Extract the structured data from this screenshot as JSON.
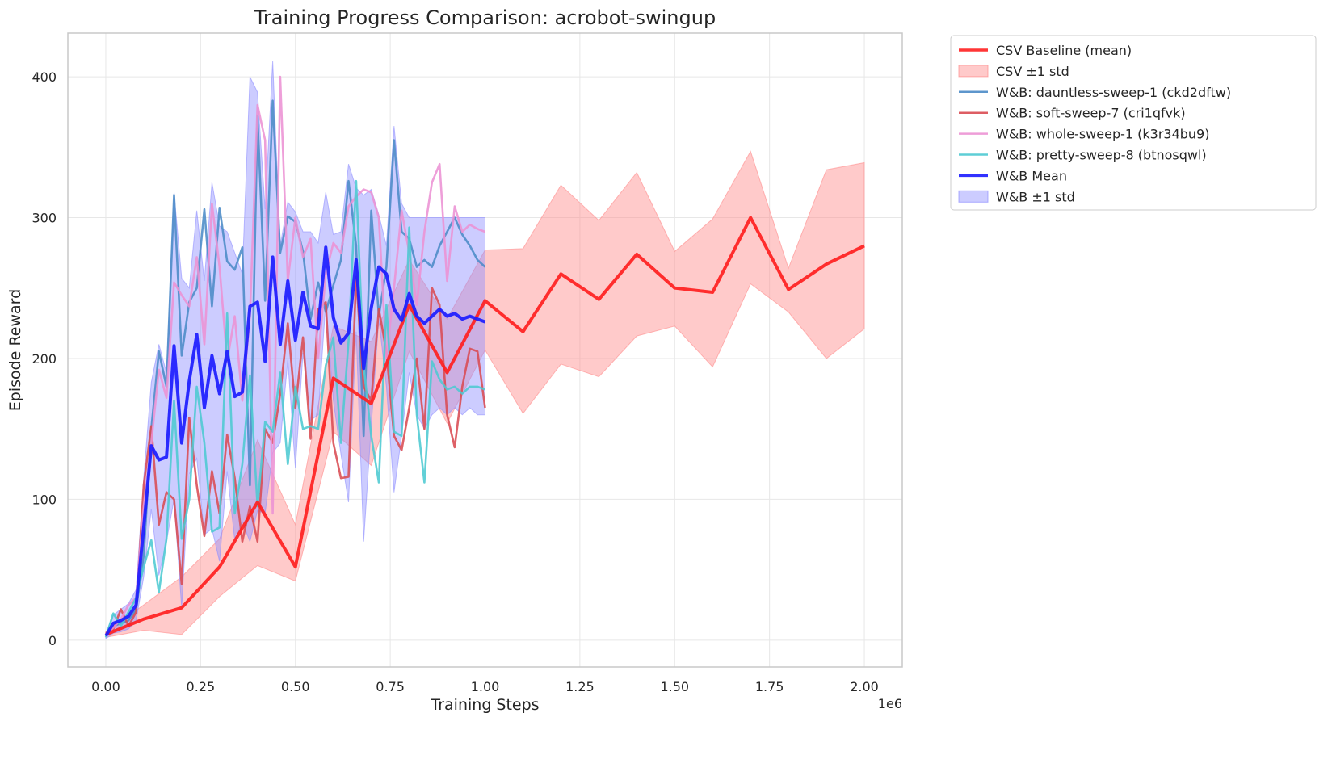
{
  "chart_data": {
    "type": "line",
    "title": "Training Progress Comparison: acrobot-swingup",
    "xlabel": "Training Steps",
    "ylabel": "Episode Reward",
    "x_offset_label": "1e6",
    "xlim": [
      -0.1,
      2.1
    ],
    "ylim": [
      -19,
      431
    ],
    "xticks": [
      0.0,
      0.25,
      0.5,
      0.75,
      1.0,
      1.25,
      1.5,
      1.75,
      2.0
    ],
    "xtick_labels": [
      "0.00",
      "0.25",
      "0.50",
      "0.75",
      "1.00",
      "1.25",
      "1.50",
      "1.75",
      "2.00"
    ],
    "yticks": [
      0,
      100,
      200,
      300,
      400
    ],
    "ytick_labels": [
      "0",
      "100",
      "200",
      "300",
      "400"
    ],
    "grid": true,
    "legend_position": "outside-top-right",
    "colors": {
      "csv": "#ff2020",
      "csv_band": "#ff8a8a",
      "wb_mean": "#1c1cff",
      "wb_band": "#8f8fff",
      "dauntless": "#4b8bc7",
      "soft": "#d94b52",
      "whole": "#ec92d4",
      "pretty": "#4cc9d1",
      "grid": "#e7e7e7",
      "frame": "#c8c8c8"
    },
    "legend": [
      {
        "label": "CSV Baseline (mean)",
        "kind": "line",
        "color": "#ff2020",
        "width": 3.5
      },
      {
        "label": "CSV ±1 std",
        "kind": "band",
        "color": "#ff8a8a"
      },
      {
        "label": "W&B: dauntless-sweep-1 (ckd2dftw)",
        "kind": "line",
        "color": "#4b8bc7",
        "width": 2.5
      },
      {
        "label": "W&B: soft-sweep-7 (cri1qfvk)",
        "kind": "line",
        "color": "#d94b52",
        "width": 2.5
      },
      {
        "label": "W&B: whole-sweep-1 (k3r34bu9)",
        "kind": "line",
        "color": "#ec92d4",
        "width": 2.5
      },
      {
        "label": "W&B: pretty-sweep-8 (btnosqwl)",
        "kind": "line",
        "color": "#4cc9d1",
        "width": 2.5
      },
      {
        "label": "W&B Mean",
        "kind": "line",
        "color": "#1c1cff",
        "width": 3.5
      },
      {
        "label": "W&B ±1 std",
        "kind": "band",
        "color": "#8f8fff"
      }
    ],
    "csv": {
      "x": [
        0.0,
        0.1,
        0.2,
        0.3,
        0.4,
        0.5,
        0.6,
        0.7,
        0.8,
        0.9,
        1.0,
        1.1,
        1.2,
        1.3,
        1.4,
        1.5,
        1.6,
        1.7,
        1.8,
        1.9,
        2.0
      ],
      "mean": [
        4,
        15,
        23,
        52,
        98,
        52,
        186,
        168,
        238,
        190,
        241,
        219,
        260,
        242,
        274,
        250,
        247,
        300,
        249,
        267,
        280
      ],
      "upper": [
        6,
        25,
        45,
        72,
        142,
        82,
        223,
        212,
        270,
        228,
        277,
        278,
        323,
        298,
        332,
        276,
        299,
        347,
        264,
        334,
        339
      ],
      "lower": [
        2,
        7,
        4,
        31,
        53,
        42,
        148,
        124,
        205,
        154,
        206,
        161,
        196,
        187,
        216,
        223,
        194,
        253,
        233,
        200,
        221
      ]
    },
    "wb_x": [
      0.0,
      0.02,
      0.04,
      0.06,
      0.08,
      0.1,
      0.12,
      0.14,
      0.16,
      0.18,
      0.2,
      0.22,
      0.24,
      0.26,
      0.28,
      0.3,
      0.32,
      0.34,
      0.36,
      0.38,
      0.4,
      0.42,
      0.44,
      0.46,
      0.48,
      0.5,
      0.52,
      0.54,
      0.56,
      0.58,
      0.6,
      0.62,
      0.64,
      0.66,
      0.68,
      0.7,
      0.72,
      0.74,
      0.76,
      0.78,
      0.8,
      0.82,
      0.84,
      0.86,
      0.88,
      0.9,
      0.92,
      0.94,
      0.96,
      0.98,
      1.0
    ],
    "series": [
      {
        "name": "W&B: dauntless-sweep-1 (ckd2dftw)",
        "color": "#4b8bc7",
        "values": [
          3,
          10,
          12,
          14,
          22,
          60,
          150,
          205,
          180,
          316,
          202,
          240,
          250,
          306,
          237,
          307,
          269,
          263,
          279,
          110,
          372,
          241,
          383,
          275,
          301,
          297,
          276,
          228,
          254,
          233,
          252,
          270,
          326,
          280,
          145,
          305,
          230,
          265,
          355,
          290,
          285,
          265,
          270,
          265,
          280,
          290,
          300,
          288,
          280,
          270,
          265
        ]
      },
      {
        "name": "W&B: soft-sweep-7 (cri1qfvk)",
        "color": "#d94b52",
        "values": [
          5,
          8,
          22,
          10,
          20,
          110,
          152,
          82,
          105,
          100,
          40,
          158,
          110,
          74,
          120,
          90,
          146,
          115,
          70,
          95,
          70,
          150,
          140,
          175,
          225,
          165,
          215,
          143,
          235,
          240,
          140,
          115,
          116,
          258,
          180,
          170,
          235,
          205,
          145,
          135,
          165,
          200,
          150,
          250,
          238,
          160,
          137,
          180,
          207,
          205,
          165
        ]
      },
      {
        "name": "W&B: whole-sweep-1 (k3r34bu9)",
        "color": "#ec92d4",
        "values": [
          4,
          9,
          15,
          25,
          30,
          95,
          140,
          192,
          172,
          254,
          245,
          237,
          272,
          210,
          310,
          265,
          198,
          230,
          170,
          230,
          380,
          355,
          90,
          400,
          255,
          300,
          272,
          285,
          200,
          260,
          282,
          275,
          308,
          315,
          320,
          318,
          300,
          200,
          250,
          305,
          275,
          238,
          290,
          325,
          338,
          255,
          308,
          290,
          295,
          292,
          290
        ]
      },
      {
        "name": "W&B: pretty-sweep-8 (btnosqwl)",
        "color": "#4cc9d1",
        "values": [
          2,
          19,
          10,
          20,
          30,
          52,
          71,
          34,
          72,
          170,
          72,
          100,
          180,
          140,
          77,
          80,
          232,
          90,
          125,
          188,
          95,
          155,
          148,
          190,
          125,
          180,
          150,
          152,
          150,
          195,
          215,
          140,
          212,
          326,
          195,
          145,
          112,
          238,
          148,
          145,
          293,
          160,
          112,
          198,
          185,
          178,
          180,
          175,
          180,
          180,
          178
        ]
      }
    ],
    "wb_mean": [
      3,
      12,
      14,
      17,
      25,
      80,
      138,
      128,
      130,
      209,
      140,
      184,
      217,
      165,
      202,
      175,
      205,
      173,
      176,
      237,
      240,
      198,
      272,
      210,
      255,
      213,
      247,
      223,
      221,
      279,
      229,
      211,
      218,
      270,
      193,
      236,
      265,
      260,
      235,
      227,
      246,
      230,
      225,
      230,
      235,
      230,
      232,
      228,
      230,
      228,
      226
    ],
    "wb_upper": [
      5,
      18,
      22,
      26,
      36,
      115,
      183,
      210,
      190,
      318,
      257,
      250,
      305,
      255,
      325,
      294,
      290,
      275,
      260,
      400,
      389,
      306,
      411,
      280,
      311,
      304,
      290,
      290,
      282,
      318,
      288,
      290,
      338,
      321,
      316,
      320,
      302,
      280,
      365,
      310,
      300,
      300,
      300,
      300,
      300,
      300,
      300,
      300,
      300,
      300,
      300
    ],
    "wb_lower": [
      1,
      5,
      6,
      8,
      14,
      45,
      93,
      46,
      70,
      100,
      23,
      118,
      129,
      75,
      79,
      56,
      120,
      71,
      84,
      70,
      92,
      90,
      133,
      140,
      199,
      122,
      204,
      156,
      160,
      240,
      170,
      132,
      98,
      219,
      70,
      152,
      228,
      180,
      105,
      145,
      190,
      160,
      150,
      160,
      165,
      160,
      165,
      160,
      165,
      160,
      160
    ]
  }
}
